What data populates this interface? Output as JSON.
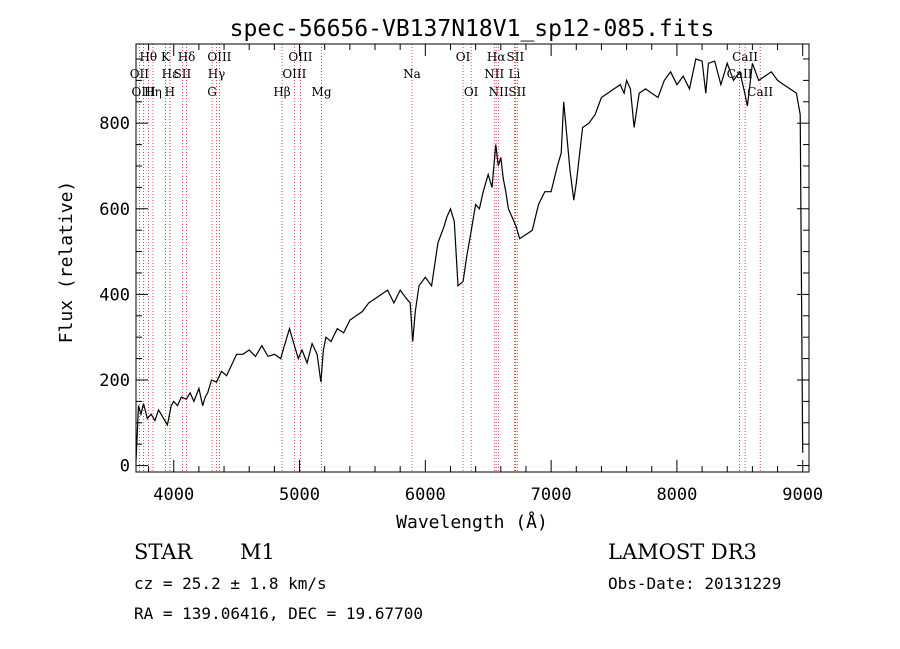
{
  "chart_data": {
    "type": "line",
    "title": "spec-56656-VB137N18V1_sp12-085.fits",
    "xlabel": "Wavelength (Å)",
    "ylabel": "Flux (relative)",
    "xlim": [
      3700,
      9050
    ],
    "ylim": [
      -15,
      985
    ],
    "xticks": [
      4000,
      5000,
      6000,
      7000,
      8000,
      9000
    ],
    "yticks": [
      0,
      200,
      400,
      600,
      800
    ],
    "series": [
      {
        "name": "flux",
        "x": [
          3700,
          3720,
          3740,
          3760,
          3790,
          3820,
          3850,
          3880,
          3910,
          3950,
          3980,
          4000,
          4030,
          4060,
          4100,
          4130,
          4160,
          4200,
          4230,
          4250,
          4270,
          4300,
          4340,
          4380,
          4420,
          4460,
          4500,
          4550,
          4600,
          4650,
          4700,
          4750,
          4800,
          4850,
          4880,
          4920,
          4950,
          4990,
          5020,
          5060,
          5100,
          5140,
          5170,
          5190,
          5210,
          5250,
          5300,
          5350,
          5400,
          5450,
          5500,
          5550,
          5600,
          5650,
          5700,
          5750,
          5800,
          5850,
          5880,
          5900,
          5920,
          5950,
          6000,
          6050,
          6100,
          6150,
          6170,
          6200,
          6230,
          6260,
          6300,
          6330,
          6360,
          6400,
          6430,
          6460,
          6500,
          6530,
          6560,
          6580,
          6600,
          6620,
          6640,
          6660,
          6690,
          6720,
          6750,
          6800,
          6850,
          6900,
          6950,
          7000,
          7050,
          7080,
          7100,
          7150,
          7180,
          7200,
          7250,
          7300,
          7350,
          7400,
          7450,
          7500,
          7550,
          7580,
          7600,
          7630,
          7660,
          7700,
          7750,
          7800,
          7850,
          7900,
          7950,
          8000,
          8050,
          8100,
          8150,
          8200,
          8230,
          8250,
          8300,
          8350,
          8400,
          8450,
          8500,
          8540,
          8560,
          8600,
          8650,
          8700,
          8750,
          8800,
          8850,
          8900,
          8950,
          8980,
          9000
        ],
        "values": [
          10,
          140,
          120,
          145,
          110,
          120,
          105,
          130,
          115,
          95,
          140,
          150,
          140,
          160,
          155,
          170,
          150,
          180,
          140,
          160,
          170,
          200,
          195,
          220,
          210,
          235,
          260,
          260,
          270,
          255,
          280,
          255,
          260,
          250,
          280,
          320,
          290,
          250,
          270,
          240,
          285,
          260,
          195,
          270,
          300,
          290,
          320,
          310,
          340,
          350,
          360,
          380,
          390,
          400,
          410,
          380,
          410,
          390,
          380,
          290,
          360,
          420,
          440,
          420,
          520,
          560,
          580,
          600,
          570,
          420,
          430,
          490,
          540,
          610,
          600,
          640,
          680,
          650,
          750,
          700,
          720,
          670,
          640,
          600,
          580,
          560,
          530,
          540,
          550,
          610,
          640,
          640,
          700,
          730,
          850,
          690,
          620,
          660,
          790,
          800,
          820,
          860,
          870,
          880,
          890,
          870,
          900,
          880,
          790,
          870,
          880,
          870,
          860,
          900,
          920,
          890,
          910,
          880,
          950,
          945,
          870,
          940,
          945,
          890,
          940,
          900,
          920,
          870,
          840,
          940,
          900,
          910,
          920,
          900,
          890,
          880,
          870,
          820,
          30
        ]
      }
    ],
    "lines": [
      {
        "label": "Hθ",
        "x": 3798,
        "row": 1
      },
      {
        "label": "OII",
        "x": 3727,
        "row": 2
      },
      {
        "label": "OIII",
        "x": 3760,
        "row": 3
      },
      {
        "label": "K",
        "x": 3934,
        "row": 1
      },
      {
        "label": "Hε",
        "x": 3970,
        "row": 2
      },
      {
        "label": "Hη",
        "x": 3835,
        "row": 3
      },
      {
        "label": "SII",
        "x": 4069,
        "row": 2
      },
      {
        "label": "Hδ",
        "x": 4102,
        "row": 1
      },
      {
        "label": "H",
        "x": 3969,
        "row": 3
      },
      {
        "label": "OIII",
        "x": 4363,
        "row": 1
      },
      {
        "label": "Hγ",
        "x": 4340,
        "row": 2
      },
      {
        "label": "G",
        "x": 4305,
        "row": 3
      },
      {
        "label": "OIII",
        "x": 5007,
        "row": 1
      },
      {
        "label": "OIII",
        "x": 4959,
        "row": 2
      },
      {
        "label": "Hβ",
        "x": 4861,
        "row": 3
      },
      {
        "label": "Mg",
        "x": 5175,
        "row": 3
      },
      {
        "label": "Na",
        "x": 5894,
        "row": 2
      },
      {
        "label": "OI",
        "x": 6300,
        "row": 1
      },
      {
        "label": "OI",
        "x": 6364,
        "row": 3
      },
      {
        "label": "Hα",
        "x": 6563,
        "row": 1
      },
      {
        "label": "SII",
        "x": 6716,
        "row": 1
      },
      {
        "label": "NII",
        "x": 6548,
        "row": 2
      },
      {
        "label": "Li",
        "x": 6708,
        "row": 2
      },
      {
        "label": "NII",
        "x": 6583,
        "row": 3
      },
      {
        "label": "SII",
        "x": 6731,
        "row": 3
      },
      {
        "label": "CaII",
        "x": 8542,
        "row": 1
      },
      {
        "label": "CaII",
        "x": 8498,
        "row": 2
      },
      {
        "label": "CaII",
        "x": 8662,
        "row": 3
      }
    ]
  },
  "info": {
    "object_class": "STAR",
    "subclass": "M1",
    "cz": "cz = 25.2 ± 1.8 km/s",
    "survey": "LAMOST DR3",
    "obs_date": "Obs-Date: 20131229",
    "radec": "RA = 139.06416, DEC =  19.67700"
  }
}
